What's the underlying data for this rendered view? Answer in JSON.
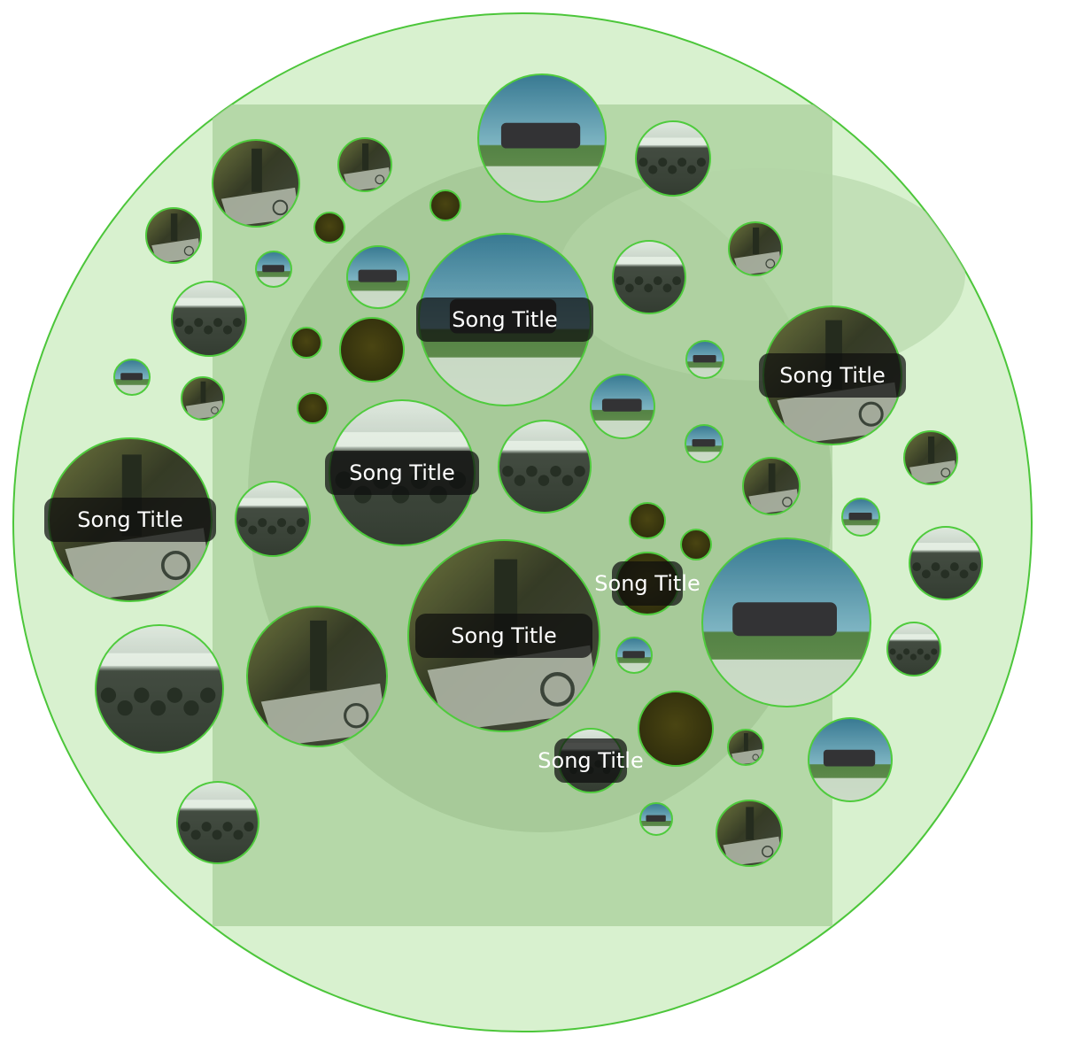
{
  "chart_data": {
    "type": "bubble",
    "colors": {
      "outer_fill": "#d8f1cf",
      "outer_stroke": "#4cc63a",
      "bubble_stroke": "#4fcb3d",
      "background_tint": "#a9cf9b",
      "label_bg": "#0e0e0e",
      "label_text": "#ffffff",
      "dark_bubble": "#3b3a10"
    },
    "art_styles": [
      "van",
      "still",
      "crowd",
      "dark"
    ],
    "bubbles": [
      {
        "art": "van",
        "label": ""
      },
      {
        "art": "crowd",
        "label": ""
      },
      {
        "art": "still",
        "label": ""
      },
      {
        "art": "still",
        "label": ""
      },
      {
        "art": "dark",
        "label": ""
      },
      {
        "art": "still",
        "label": ""
      },
      {
        "art": "dark",
        "label": ""
      },
      {
        "art": "van",
        "label": ""
      },
      {
        "art": "van",
        "label": ""
      },
      {
        "art": "van",
        "label": "Song Title"
      },
      {
        "art": "crowd",
        "label": ""
      },
      {
        "art": "still",
        "label": ""
      },
      {
        "art": "crowd",
        "label": ""
      },
      {
        "art": "dark",
        "label": ""
      },
      {
        "art": "dark",
        "label": ""
      },
      {
        "art": "van",
        "label": ""
      },
      {
        "art": "still",
        "label": "Song Title"
      },
      {
        "art": "van",
        "label": ""
      },
      {
        "art": "still",
        "label": ""
      },
      {
        "art": "dark",
        "label": ""
      },
      {
        "art": "van",
        "label": ""
      },
      {
        "art": "crowd",
        "label": "Song Title"
      },
      {
        "art": "crowd",
        "label": ""
      },
      {
        "art": "van",
        "label": ""
      },
      {
        "art": "still",
        "label": ""
      },
      {
        "art": "still",
        "label": "Song Title"
      },
      {
        "art": "crowd",
        "label": ""
      },
      {
        "art": "still",
        "label": ""
      },
      {
        "art": "van",
        "label": ""
      },
      {
        "art": "dark",
        "label": ""
      },
      {
        "art": "dark",
        "label": ""
      },
      {
        "art": "still",
        "label": "Song Title"
      },
      {
        "art": "crowd",
        "label": ""
      },
      {
        "art": "dark",
        "label": "Song Title"
      },
      {
        "art": "van",
        "label": ""
      },
      {
        "art": "crowd",
        "label": ""
      },
      {
        "art": "van",
        "label": ""
      },
      {
        "art": "still",
        "label": ""
      },
      {
        "art": "crowd",
        "label": ""
      },
      {
        "art": "dark",
        "label": ""
      },
      {
        "art": "van",
        "label": ""
      },
      {
        "art": "still",
        "label": ""
      },
      {
        "art": "crowd",
        "label": "Song Title"
      },
      {
        "art": "crowd",
        "label": ""
      },
      {
        "art": "van",
        "label": ""
      },
      {
        "art": "still",
        "label": ""
      }
    ]
  }
}
